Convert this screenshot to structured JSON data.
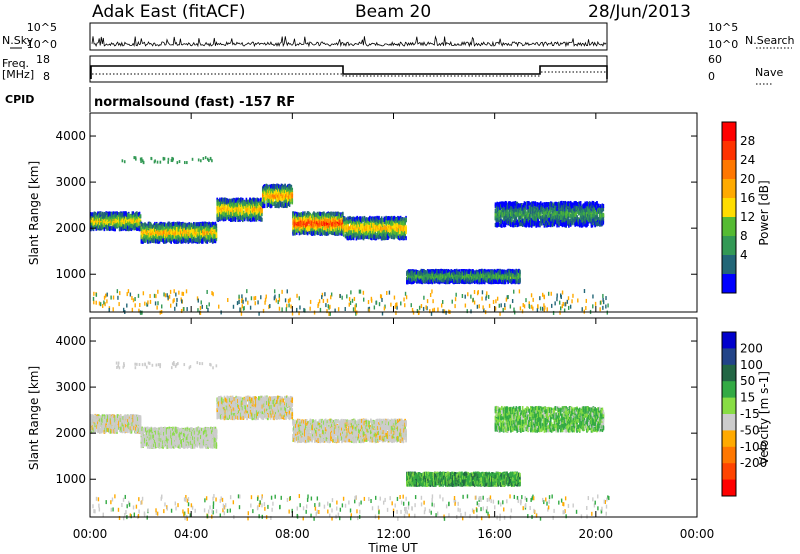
{
  "header": {
    "station": "Adak East (fitACF)",
    "beam": "Beam 20",
    "date": "28/Jun/2013"
  },
  "noise_panel": {
    "left_label": "N.Sky",
    "right_label": "N.Search",
    "left_ticks": [
      "10^5",
      "10^0"
    ],
    "right_ticks": [
      "10^5",
      "10^0"
    ]
  },
  "freq_panel": {
    "left_label_line1": "Freq.",
    "left_label_line2": "[MHz]",
    "right_label": "Nave",
    "left_ticks": [
      "18",
      "8"
    ],
    "right_ticks": [
      "60",
      "0"
    ]
  },
  "cpid": {
    "label": "CPID",
    "text": "normalsound (fast) -157 RF"
  },
  "x_axis": {
    "label": "Time UT",
    "tick_labels": [
      "00:00",
      "04:00",
      "08:00",
      "12:00",
      "16:00",
      "20:00",
      "00:00"
    ]
  },
  "power_colorbar": {
    "label": "Power [dB]",
    "ticks": [
      "28",
      "24",
      "20",
      "16",
      "12",
      "8",
      "4"
    ],
    "colors": [
      "#ff0000",
      "#ff3300",
      "#ff7700",
      "#ffaa00",
      "#ffdd00",
      "#55bb33",
      "#339955",
      "#226677",
      "#0000ff"
    ]
  },
  "velocity_colorbar": {
    "label": "Velocity [m s-1]",
    "ticks": [
      "200",
      "100",
      "50",
      "15",
      "-15",
      "-50",
      "-100",
      "-200"
    ],
    "colors": [
      "#0000cc",
      "#224488",
      "#226644",
      "#33aa44",
      "#88dd44",
      "#cccccc",
      "#ffaa00",
      "#ff7700",
      "#ff4400",
      "#ff0000"
    ]
  },
  "chart_data": [
    {
      "type": "heatmap",
      "title": "Power",
      "xlabel": "",
      "ylabel": "Slant Range [km]",
      "xlim": [
        "00:00",
        "24:00"
      ],
      "ylim": [
        180,
        4500
      ],
      "y_ticks": [
        1000,
        2000,
        3000,
        4000
      ],
      "data_end_time": "20:30",
      "bands": [
        {
          "start": 0.0,
          "end": 2.0,
          "center_km": 2150,
          "width_km": 350,
          "peak_db": 18
        },
        {
          "start": 2.0,
          "end": 5.0,
          "center_km": 1900,
          "width_km": 400,
          "peak_db": 20
        },
        {
          "start": 5.0,
          "end": 6.8,
          "center_km": 2400,
          "width_km": 450,
          "peak_db": 20
        },
        {
          "start": 6.8,
          "end": 8.0,
          "center_km": 2700,
          "width_km": 450,
          "peak_db": 22
        },
        {
          "start": 8.0,
          "end": 10.0,
          "center_km": 2100,
          "width_km": 450,
          "peak_db": 28
        },
        {
          "start": 10.0,
          "end": 12.5,
          "center_km": 2000,
          "width_km": 450,
          "peak_db": 20
        },
        {
          "start": 12.5,
          "end": 17.0,
          "center_km": 950,
          "width_km": 250,
          "peak_db": 12
        },
        {
          "start": 16.0,
          "end": 20.3,
          "center_km": 2300,
          "width_km": 500,
          "peak_db": 10
        }
      ]
    },
    {
      "type": "heatmap",
      "title": "Velocity",
      "xlabel": "Time UT",
      "ylabel": "Slant Range [km]",
      "xlim": [
        "00:00",
        "24:00"
      ],
      "ylim": [
        180,
        4500
      ],
      "y_ticks": [
        1000,
        2000,
        3000,
        4000
      ],
      "data_end_time": "20:30",
      "bands": [
        {
          "start": 0.0,
          "end": 2.0,
          "center_km": 2200,
          "width_km": 350,
          "velocity": 0
        },
        {
          "start": 2.0,
          "end": 5.0,
          "center_km": 1900,
          "width_km": 400,
          "velocity": 5
        },
        {
          "start": 5.0,
          "end": 8.0,
          "center_km": 2550,
          "width_km": 450,
          "velocity": 0
        },
        {
          "start": 8.0,
          "end": 12.5,
          "center_km": 2050,
          "width_km": 450,
          "velocity": 0
        },
        {
          "start": 12.5,
          "end": 17.0,
          "center_km": 1000,
          "width_km": 250,
          "velocity": 40
        },
        {
          "start": 16.0,
          "end": 20.3,
          "center_km": 2300,
          "width_km": 500,
          "velocity": 30
        }
      ]
    }
  ]
}
